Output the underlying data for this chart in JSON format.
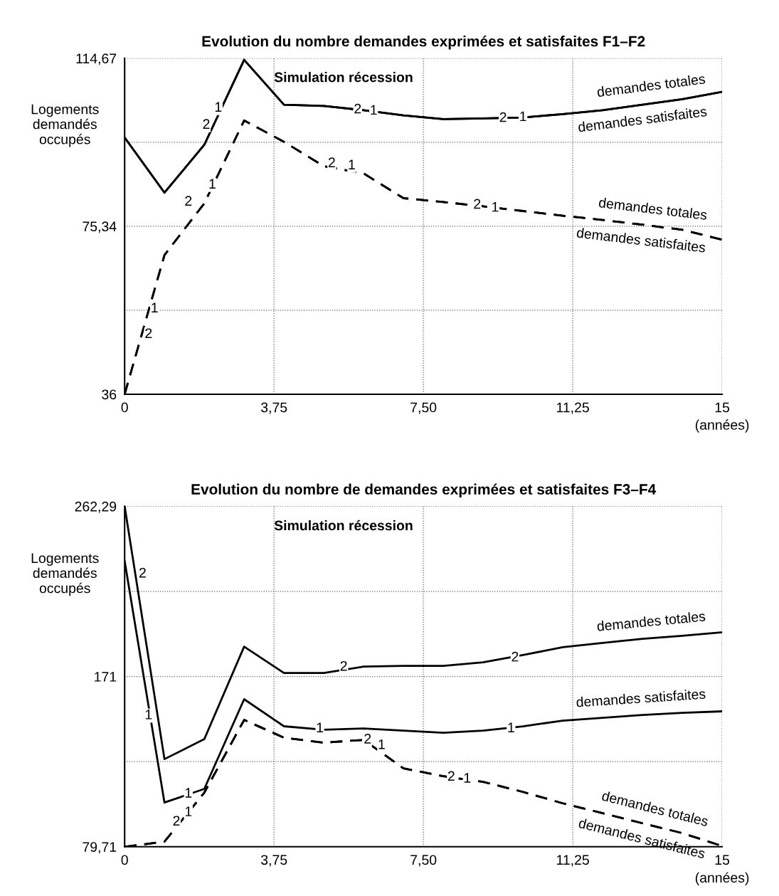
{
  "chart_data": [
    {
      "type": "line",
      "title": "Evolution du nombre demandes exprimées et satisfaites F1–F2",
      "ylabel": "Logements\ndemandés\noccupés",
      "xlabel": "(années)",
      "x": [
        0,
        1,
        2,
        3,
        4,
        5,
        6,
        7,
        8,
        9,
        10,
        11,
        12,
        13,
        14,
        15
      ],
      "series": [
        {
          "name": "demandes totales",
          "color": "#000000",
          "line_style": "solid",
          "values": [
            96.1,
            83.2,
            94.4,
            114.3,
            103.8,
            103.5,
            102.5,
            101.3,
            100.4,
            100.6,
            100.8,
            101.6,
            102.5,
            103.8,
            105.1,
            106.8
          ]
        },
        {
          "name": "demandes satisfaites",
          "color": "#000000",
          "line_style": "solid",
          "values": [
            96.1,
            83.2,
            94.4,
            114.3,
            103.8,
            103.5,
            102.5,
            101.3,
            100.4,
            100.6,
            100.8,
            101.6,
            102.5,
            103.8,
            105.1,
            106.8
          ]
        },
        {
          "name": "demandes totales",
          "color": "#000000",
          "line_style": "dashed",
          "values": [
            36,
            68.6,
            80.7,
            100.1,
            95.1,
            89.4,
            87.7,
            81.9,
            81.0,
            80.0,
            78.9,
            77.8,
            76.8,
            75.7,
            74.5,
            72.2
          ]
        },
        {
          "name": "demandes satisfaites",
          "color": "#000000",
          "line_style": "dashed",
          "values": [
            36,
            68.6,
            80.7,
            100.1,
            95.1,
            89.4,
            87.7,
            81.9,
            81.0,
            80.0,
            78.9,
            77.8,
            76.8,
            75.7,
            74.5,
            72.2
          ]
        }
      ],
      "xlim": [
        0,
        15
      ],
      "ylim": [
        36,
        114.67
      ],
      "xticks": [
        0,
        {
          "value": 3.75,
          "label": "3,75"
        },
        {
          "value": 7.5,
          "label": "7,50"
        },
        {
          "value": 11.25,
          "label": "11,25"
        },
        15
      ],
      "yticks": [
        36,
        {
          "value": 55.67,
          "label": null
        },
        {
          "value": 75.34,
          "label": "75,34"
        },
        {
          "value": 95,
          "label": null
        },
        {
          "value": 114.67,
          "label": "114,67"
        }
      ],
      "grid": true,
      "legend": false,
      "annotations": [
        "Simulation récession",
        {
          "text": "2",
          "x": 5.85,
          "y": 102.6
        },
        {
          "text": "1",
          "x": 6.25,
          "y": 102.3
        },
        {
          "text": "2",
          "x": 9.5,
          "y": 100.6
        },
        {
          "text": "1",
          "x": 10.0,
          "y": 100.8
        },
        {
          "text": "2",
          "x": 5.2,
          "y": 90
        },
        {
          "text": "1",
          "x": 5.7,
          "y": 89.5
        },
        {
          "text": "2",
          "x": 8.85,
          "y": 80.3
        },
        {
          "text": "1",
          "x": 9.3,
          "y": 79.6
        },
        {
          "text": "1",
          "x": 0.75,
          "y": 56
        },
        {
          "text": "2",
          "x": 0.6,
          "y": 50
        },
        {
          "text": "2",
          "x": 1.6,
          "y": 81
        },
        {
          "text": "1",
          "x": 2.2,
          "y": 85
        },
        {
          "text": "2",
          "x": 2.05,
          "y": 99
        },
        {
          "text": "1",
          "x": 2.35,
          "y": 103
        }
      ]
    },
    {
      "type": "line",
      "title": "Evolution du nombre de demandes exprimées et satisfaites F3–F4",
      "ylabel": "Logements\ndemandés\noccupés",
      "xlabel": "(années)",
      "x": [
        0,
        1,
        2,
        3,
        4,
        5,
        6,
        7,
        8,
        9,
        10,
        11,
        12,
        13,
        14,
        15
      ],
      "series": [
        {
          "name": "demandes totales",
          "color": "#000000",
          "line_style": "solid",
          "values": [
            262.29,
            126.7,
            137.4,
            187.0,
            172.9,
            172.9,
            176.3,
            176.7,
            176.7,
            178.6,
            182.5,
            186.7,
            189.0,
            191.2,
            192.8,
            194.7
          ]
        },
        {
          "name": "demandes satisfaites",
          "color": "#000000",
          "line_style": "solid",
          "values": [
            232.9,
            103.4,
            110.7,
            158.8,
            144.3,
            142.4,
            143.1,
            142.0,
            140.8,
            142.0,
            144.3,
            147.3,
            148.8,
            150.4,
            151.5,
            152.3
          ]
        },
        {
          "name": "demandes totales",
          "color": "#000000",
          "line_style": "dashed",
          "values": [
            79.71,
            82.4,
            108.7,
            147.7,
            138.2,
            135.5,
            137.0,
            121.7,
            117.5,
            114.5,
            109.1,
            103.0,
            97.7,
            92.3,
            87.0,
            80.1
          ]
        },
        {
          "name": "demandes satisfaites",
          "color": "#000000",
          "line_style": "dashed",
          "values": [
            79.71,
            82.4,
            108.7,
            147.7,
            138.2,
            135.5,
            137.0,
            121.7,
            117.5,
            114.5,
            109.1,
            103.0,
            97.7,
            92.3,
            87.0,
            80.1
          ]
        }
      ],
      "xlim": [
        0,
        15
      ],
      "ylim": [
        79.71,
        262.29
      ],
      "xticks": [
        0,
        {
          "value": 3.75,
          "label": "3,75"
        },
        {
          "value": 7.5,
          "label": "7,50"
        },
        {
          "value": 11.25,
          "label": "11,25"
        },
        15
      ],
      "yticks": [
        {
          "value": 79.71,
          "label": "79,71"
        },
        {
          "value": 125.4,
          "label": null
        },
        171,
        {
          "value": 216.6,
          "label": null
        },
        {
          "value": 262.29,
          "label": "262,29"
        }
      ],
      "grid": true,
      "legend": false,
      "annotations": [
        "Simulation récession",
        {
          "text": "2",
          "x": 0.45,
          "y": 226
        },
        {
          "text": "1",
          "x": 0.6,
          "y": 150
        },
        {
          "text": "1",
          "x": 1.6,
          "y": 108
        },
        {
          "text": "2",
          "x": 1.3,
          "y": 93
        },
        {
          "text": "1",
          "x": 1.6,
          "y": 98
        },
        {
          "text": "2",
          "x": 5.5,
          "y": 176
        },
        {
          "text": "2",
          "x": 9.8,
          "y": 181
        },
        {
          "text": "1",
          "x": 4.9,
          "y": 143
        },
        {
          "text": "1",
          "x": 9.7,
          "y": 143
        },
        {
          "text": "2",
          "x": 6.1,
          "y": 137
        },
        {
          "text": "1",
          "x": 6.45,
          "y": 134
        },
        {
          "text": "2",
          "x": 8.2,
          "y": 117
        },
        {
          "text": "1",
          "x": 8.6,
          "y": 116
        }
      ]
    }
  ]
}
